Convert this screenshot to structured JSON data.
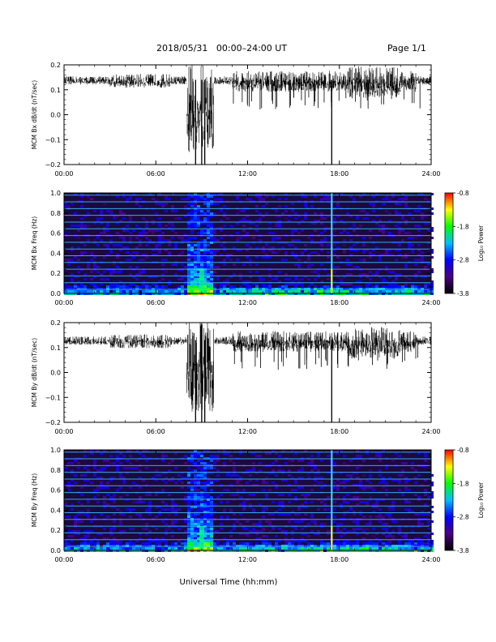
{
  "header": {
    "title": "2018/05/31   00:00–24:00 UT",
    "page": "Page 1/1"
  },
  "colors": {
    "line": "#000000",
    "spectrogram_background": "#1a0a40",
    "colormap": [
      "#000000",
      "#4b0082",
      "#0000ff",
      "#00bfff",
      "#00ff00",
      "#ffff00",
      "#ff0000"
    ]
  },
  "chart_data": [
    {
      "type": "line",
      "ylabel": "MCM Bx dB/dt (nT/sec)",
      "xlim": [
        0,
        24
      ],
      "ylim": [
        -0.2,
        0.2
      ],
      "xticks": [
        "00:00",
        "06:00",
        "12:00",
        "18:00",
        "24:00"
      ],
      "yticks": [
        "0.2",
        "0.1",
        "0.0",
        "−0.1",
        "−0.2"
      ],
      "baseline": 0.14,
      "spike_hours": [
        8.6,
        9.0,
        9.2,
        17.5
      ]
    },
    {
      "type": "heatmap",
      "ylabel": "MCM Bx Freq (Hz)",
      "xlim": [
        0,
        24
      ],
      "ylim": [
        0.0,
        1.0
      ],
      "xticks": [
        "00:00",
        "06:00",
        "12:00",
        "18:00",
        "24:00"
      ],
      "yticks": [
        "1.0",
        "0.8",
        "0.6",
        "0.4",
        "0.2",
        "0.0"
      ],
      "colorbar_label": "Log₁₀ Power",
      "colorbar_ticks": [
        "-0.8",
        "-1.8",
        "-2.8",
        "-3.8"
      ],
      "colorbar_range": [
        -3.8,
        -0.8
      ],
      "vertical_line_hour": 17.5
    },
    {
      "type": "line",
      "ylabel": "MCM By dB/dt (nT/sec)",
      "xlim": [
        0,
        24
      ],
      "ylim": [
        -0.2,
        0.2
      ],
      "xticks": [
        "00:00",
        "06:00",
        "12:00",
        "18:00",
        "24:00"
      ],
      "yticks": [
        "0.2",
        "0.1",
        "0.0",
        "−0.1",
        "−0.2"
      ],
      "baseline": 0.13,
      "spike_hours": [
        8.6,
        9.0,
        9.2,
        17.5
      ]
    },
    {
      "type": "heatmap",
      "ylabel": "MCM By Freq (Hz)",
      "xlim": [
        0,
        24
      ],
      "ylim": [
        0.0,
        1.0
      ],
      "xticks": [
        "00:00",
        "06:00",
        "12:00",
        "18:00",
        "24:00"
      ],
      "yticks": [
        "1.0",
        "0.8",
        "0.6",
        "0.4",
        "0.2",
        "0.0"
      ],
      "colorbar_label": "Log₁₀ Power",
      "colorbar_ticks": [
        "-0.8",
        "-1.8",
        "-2.8",
        "-3.8"
      ],
      "colorbar_range": [
        -3.8,
        -0.8
      ],
      "vertical_line_hour": 17.5
    }
  ],
  "xlabel": "Universal Time (hh:mm)"
}
